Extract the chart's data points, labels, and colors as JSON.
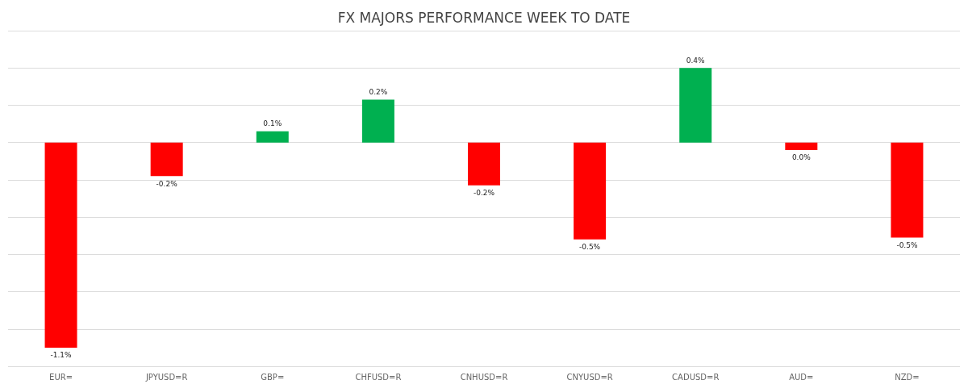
{
  "chart_data": {
    "type": "bar",
    "title": "FX MAJORS PERFORMANCE WEEK TO DATE",
    "categories": [
      "EUR=",
      "JPYUSD=R",
      "GBP=",
      "CHFUSD=R",
      "CNHUSD=R",
      "CNYUSD=R",
      "CADUSD=R",
      "AUD=",
      "NZD="
    ],
    "values": [
      -1.1,
      -0.18,
      0.06,
      0.23,
      -0.23,
      -0.52,
      0.4,
      -0.04,
      -0.51
    ],
    "colors": [
      "#ff0000",
      "#ff0000",
      "#00b050",
      "#00b050",
      "#ff0000",
      "#ff0000",
      "#00b050",
      "#ff0000",
      "#ff0000"
    ],
    "value_labels": [
      "-1.1%",
      "-0.2%",
      "0.1%",
      "0.2%",
      "-0.2%",
      "-0.5%",
      "0.4%",
      "0.0%",
      "-0.5%"
    ],
    "ylim": [
      -1.2,
      0.6
    ],
    "yticks": [
      -1.2,
      -1,
      -0.8,
      -0.6,
      -0.4,
      -0.2,
      0,
      0.2,
      0.4,
      0.6
    ],
    "grid": "y",
    "tick_labels": "x"
  }
}
